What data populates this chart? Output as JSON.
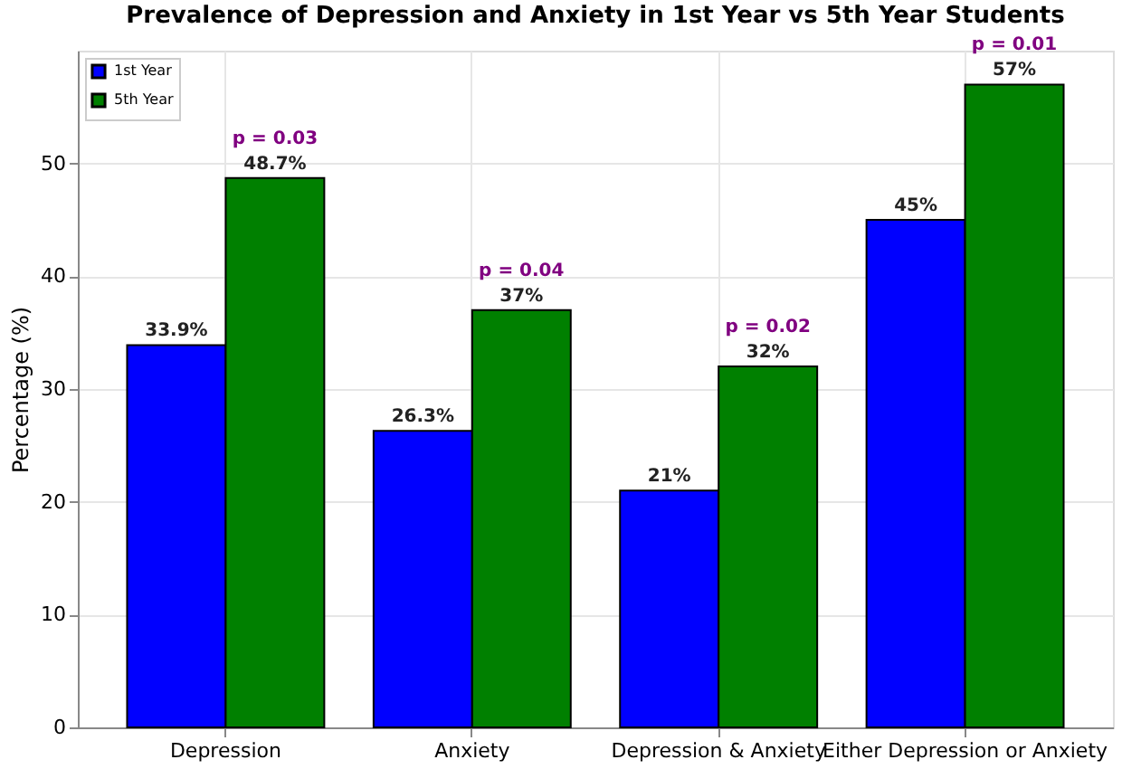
{
  "chart_data": {
    "type": "bar",
    "title": "Prevalence of Depression and Anxiety in 1st Year vs 5th Year Students",
    "ylabel": "Percentage (%)",
    "categories": [
      "Depression",
      "Anxiety",
      "Depression & Anxiety",
      "Either Depression or Anxiety"
    ],
    "series": [
      {
        "name": "1st Year",
        "color": "#0000ff",
        "values": [
          33.9,
          26.3,
          21,
          45
        ],
        "value_labels": [
          "33.9%",
          "26.3%",
          "21%",
          "45%"
        ]
      },
      {
        "name": "5th Year",
        "color": "#008000",
        "values": [
          48.7,
          37,
          32,
          57
        ],
        "value_labels": [
          "48.7%",
          "37%",
          "32%",
          "57%"
        ]
      }
    ],
    "annotations": [
      {
        "text": "p = 0.03",
        "x": "Depression",
        "y": 48.7
      },
      {
        "text": "p = 0.04",
        "x": "Anxiety",
        "y": 37
      },
      {
        "text": "p = 0.02",
        "x": "Depression & Anxiety",
        "y": 32
      },
      {
        "text": "p = 0.01",
        "x": "Either Depression or Anxiety",
        "y": 57
      }
    ],
    "ylim": [
      0,
      60
    ],
    "yticks": [
      0,
      10,
      20,
      30,
      40,
      50
    ],
    "grid": true,
    "legend": "top left"
  }
}
